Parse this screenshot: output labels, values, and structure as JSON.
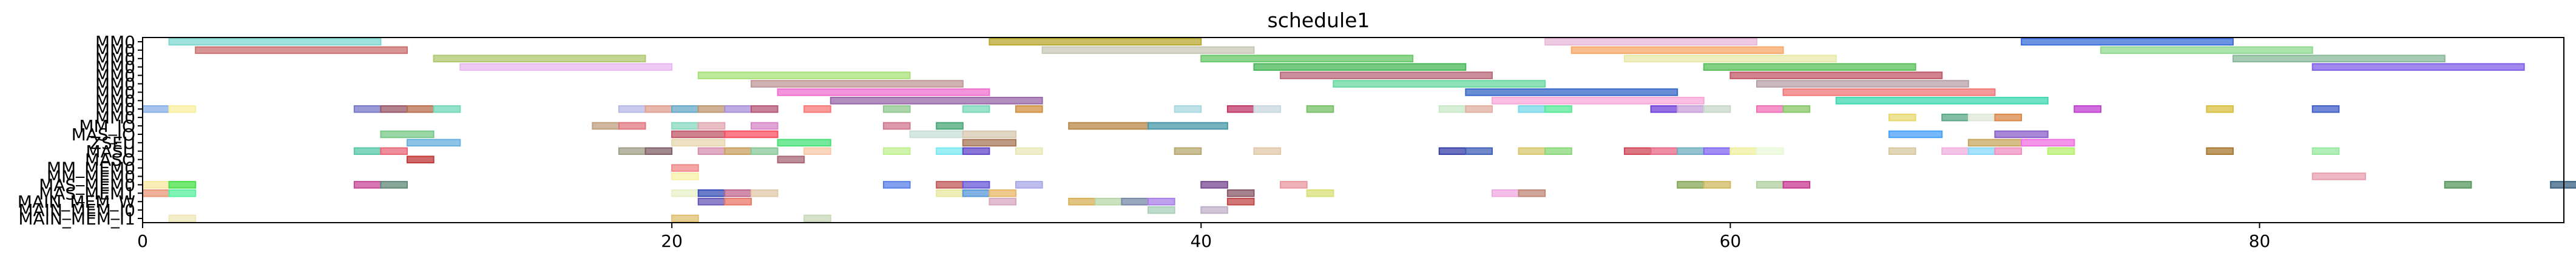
{
  "chart_data": {
    "type": "gantt",
    "title": "schedule1",
    "xlabel": "",
    "ylabel": "",
    "xlim": [
      0,
      91.5
    ],
    "xticks": [
      0,
      20,
      40,
      60,
      80
    ],
    "grid": false,
    "rows": [
      "MM0",
      "MM0",
      "MM0",
      "MM0",
      "MM0",
      "MM0",
      "MM0",
      "MM0",
      "MM0",
      "MM0",
      "MM_IO",
      "MAS_IO",
      "ZSEU",
      "MASU",
      "MASO",
      "MM_MEM0",
      "MM_MEM0",
      "MAS_MEM0",
      "MAS_MEM1",
      "MAIN_MEM_W",
      "MAIN_MEM_I0",
      "MAIN_MEM_I1"
    ],
    "bars": [
      {
        "row": 0,
        "start": 1.0,
        "end": 9.0,
        "color": "#7fd8d0"
      },
      {
        "row": 0,
        "start": 32.0,
        "end": 40.0,
        "color": "#b8a830"
      },
      {
        "row": 0,
        "start": 53.0,
        "end": 61.0,
        "color": "#e8b8d8"
      },
      {
        "row": 0,
        "start": 71.0,
        "end": 79.0,
        "color": "#3a6fd8"
      },
      {
        "row": 1,
        "start": 2.0,
        "end": 10.0,
        "color": "#cc7070"
      },
      {
        "row": 1,
        "start": 34.0,
        "end": 42.0,
        "color": "#c8c8b8"
      },
      {
        "row": 1,
        "start": 54.0,
        "end": 62.0,
        "color": "#f8a868"
      },
      {
        "row": 1,
        "start": 74.0,
        "end": 82.0,
        "color": "#90d890"
      },
      {
        "row": 2,
        "start": 11.0,
        "end": 19.0,
        "color": "#b0c870"
      },
      {
        "row": 2,
        "start": 40.0,
        "end": 48.0,
        "color": "#68c868"
      },
      {
        "row": 2,
        "start": 56.0,
        "end": 64.0,
        "color": "#e8e8a8"
      },
      {
        "row": 2,
        "start": 79.0,
        "end": 87.0,
        "color": "#88b898"
      },
      {
        "row": 3,
        "start": 12.0,
        "end": 20.0,
        "color": "#e8b8f0"
      },
      {
        "row": 3,
        "start": 42.0,
        "end": 50.0,
        "color": "#48b858"
      },
      {
        "row": 3,
        "start": 59.0,
        "end": 67.0,
        "color": "#58c058"
      },
      {
        "row": 3,
        "start": 82.0,
        "end": 90.0,
        "color": "#8060e8"
      },
      {
        "row": 4,
        "start": 21.0,
        "end": 29.0,
        "color": "#a8e078"
      },
      {
        "row": 4,
        "start": 43.0,
        "end": 51.0,
        "color": "#b86878"
      },
      {
        "row": 4,
        "start": 60.0,
        "end": 68.0,
        "color": "#c05868"
      },
      {
        "row": 5,
        "start": 23.0,
        "end": 31.0,
        "color": "#c09898"
      },
      {
        "row": 5,
        "start": 45.0,
        "end": 53.0,
        "color": "#68d8a0"
      },
      {
        "row": 5,
        "start": 61.0,
        "end": 69.0,
        "color": "#b8a0a8"
      },
      {
        "row": 6,
        "start": 24.0,
        "end": 32.0,
        "color": "#f070d0"
      },
      {
        "row": 6,
        "start": 50.0,
        "end": 58.0,
        "color": "#3868c8"
      },
      {
        "row": 6,
        "start": 62.0,
        "end": 70.0,
        "color": "#f07878"
      },
      {
        "row": 7,
        "start": 26.0,
        "end": 34.0,
        "color": "#9868a8"
      },
      {
        "row": 7,
        "start": 51.0,
        "end": 59.0,
        "color": "#f8a8d8"
      },
      {
        "row": 7,
        "start": 64.0,
        "end": 72.0,
        "color": "#40d8b0"
      },
      {
        "row": 8,
        "start": 0.0,
        "end": 1.0,
        "color": "#88b0e8"
      },
      {
        "row": 8,
        "start": 1.0,
        "end": 2.0,
        "color": "#f8f0a0"
      },
      {
        "row": 8,
        "start": 8.0,
        "end": 9.0,
        "color": "#7878c8"
      },
      {
        "row": 8,
        "start": 9.0,
        "end": 10.0,
        "color": "#985868"
      },
      {
        "row": 8,
        "start": 10.0,
        "end": 11.0,
        "color": "#b87050"
      },
      {
        "row": 8,
        "start": 11.0,
        "end": 12.0,
        "color": "#70d8b8"
      },
      {
        "row": 8,
        "start": 18.0,
        "end": 19.0,
        "color": "#b8b8e8"
      },
      {
        "row": 8,
        "start": 19.0,
        "end": 20.0,
        "color": "#e0a090"
      },
      {
        "row": 8,
        "start": 20.0,
        "end": 21.0,
        "color": "#68a8c8"
      },
      {
        "row": 8,
        "start": 21.0,
        "end": 22.0,
        "color": "#c09870"
      },
      {
        "row": 8,
        "start": 22.0,
        "end": 23.0,
        "color": "#a890d8"
      },
      {
        "row": 8,
        "start": 23.0,
        "end": 24.0,
        "color": "#b85878"
      },
      {
        "row": 8,
        "start": 25.0,
        "end": 26.0,
        "color": "#f87878"
      },
      {
        "row": 8,
        "start": 28.0,
        "end": 29.0,
        "color": "#90c890"
      },
      {
        "row": 8,
        "start": 31.0,
        "end": 32.0,
        "color": "#78d8b8"
      },
      {
        "row": 8,
        "start": 33.0,
        "end": 34.0,
        "color": "#d09040"
      },
      {
        "row": 8,
        "start": 39.0,
        "end": 40.0,
        "color": "#a8d8e0"
      },
      {
        "row": 8,
        "start": 41.0,
        "end": 42.0,
        "color": "#c03868"
      },
      {
        "row": 8,
        "start": 42.0,
        "end": 43.0,
        "color": "#c8d8e0"
      },
      {
        "row": 8,
        "start": 44.0,
        "end": 45.0,
        "color": "#78c068"
      },
      {
        "row": 8,
        "start": 49.0,
        "end": 50.0,
        "color": "#c8e8c8"
      },
      {
        "row": 8,
        "start": 50.0,
        "end": 51.0,
        "color": "#e0b0a0"
      },
      {
        "row": 8,
        "start": 52.0,
        "end": 53.0,
        "color": "#78d8e8"
      },
      {
        "row": 8,
        "start": 53.0,
        "end": 54.0,
        "color": "#58e898"
      },
      {
        "row": 8,
        "start": 57.0,
        "end": 58.0,
        "color": "#7040d8"
      },
      {
        "row": 8,
        "start": 58.0,
        "end": 59.0,
        "color": "#c8a0d8"
      },
      {
        "row": 8,
        "start": 59.0,
        "end": 60.0,
        "color": "#c8d8c8"
      },
      {
        "row": 8,
        "start": 61.0,
        "end": 62.0,
        "color": "#f070b8"
      },
      {
        "row": 8,
        "start": 62.0,
        "end": 63.0,
        "color": "#88c868"
      },
      {
        "row": 8,
        "start": 73.0,
        "end": 74.0,
        "color": "#c040d0"
      },
      {
        "row": 8,
        "start": 78.0,
        "end": 79.0,
        "color": "#d8c040"
      },
      {
        "row": 8,
        "start": 82.0,
        "end": 83.0,
        "color": "#4060c8"
      },
      {
        "row": 9,
        "start": 66.0,
        "end": 67.0,
        "color": "#e8d870"
      },
      {
        "row": 9,
        "start": 68.0,
        "end": 69.0,
        "color": "#58a888"
      },
      {
        "row": 9,
        "start": 69.0,
        "end": 70.0,
        "color": "#e0e8d8"
      },
      {
        "row": 9,
        "start": 70.0,
        "end": 71.0,
        "color": "#d88848"
      },
      {
        "row": 10,
        "start": 17.0,
        "end": 18.0,
        "color": "#c0a080"
      },
      {
        "row": 10,
        "start": 18.0,
        "end": 19.0,
        "color": "#e07880"
      },
      {
        "row": 10,
        "start": 20.0,
        "end": 21.0,
        "color": "#88d8c0"
      },
      {
        "row": 10,
        "start": 21.0,
        "end": 22.0,
        "color": "#e0a8b0"
      },
      {
        "row": 10,
        "start": 23.0,
        "end": 24.0,
        "color": "#d888c8"
      },
      {
        "row": 10,
        "start": 28.0,
        "end": 29.0,
        "color": "#d07890"
      },
      {
        "row": 10,
        "start": 30.0,
        "end": 31.0,
        "color": "#48a878"
      },
      {
        "row": 10,
        "start": 35.0,
        "end": 38.0,
        "color": "#b88848"
      },
      {
        "row": 10,
        "start": 38.0,
        "end": 41.0,
        "color": "#4898a8"
      },
      {
        "row": 11,
        "start": 9.0,
        "end": 11.0,
        "color": "#78c888"
      },
      {
        "row": 11,
        "start": 20.0,
        "end": 22.0,
        "color": "#c05868"
      },
      {
        "row": 11,
        "start": 22.0,
        "end": 24.0,
        "color": "#f85060"
      },
      {
        "row": 11,
        "start": 29.0,
        "end": 31.0,
        "color": "#c8e0d8"
      },
      {
        "row": 11,
        "start": 31.0,
        "end": 33.0,
        "color": "#d8c8b0"
      },
      {
        "row": 11,
        "start": 66.0,
        "end": 68.0,
        "color": "#48a0f8"
      },
      {
        "row": 11,
        "start": 70.0,
        "end": 72.0,
        "color": "#8860c8"
      },
      {
        "row": 12,
        "start": 10.0,
        "end": 12.0,
        "color": "#68b0e0"
      },
      {
        "row": 12,
        "start": 20.0,
        "end": 22.0,
        "color": "#e8d8b0"
      },
      {
        "row": 12,
        "start": 24.0,
        "end": 26.0,
        "color": "#48e078"
      },
      {
        "row": 12,
        "start": 31.0,
        "end": 33.0,
        "color": "#a87858"
      },
      {
        "row": 12,
        "start": 69.0,
        "end": 71.0,
        "color": "#c8a860"
      },
      {
        "row": 12,
        "start": 71.0,
        "end": 73.0,
        "color": "#f070e0"
      },
      {
        "row": 13,
        "start": 8.0,
        "end": 9.0,
        "color": "#58c8a8"
      },
      {
        "row": 13,
        "start": 9.0,
        "end": 10.0,
        "color": "#e86878"
      },
      {
        "row": 13,
        "start": 18.0,
        "end": 19.0,
        "color": "#a0a088"
      },
      {
        "row": 13,
        "start": 19.0,
        "end": 20.0,
        "color": "#806068"
      },
      {
        "row": 13,
        "start": 21.0,
        "end": 22.0,
        "color": "#d890b0"
      },
      {
        "row": 13,
        "start": 22.0,
        "end": 23.0,
        "color": "#c8a060"
      },
      {
        "row": 13,
        "start": 23.0,
        "end": 24.0,
        "color": "#88c898"
      },
      {
        "row": 13,
        "start": 25.0,
        "end": 26.0,
        "color": "#f8c8a8"
      },
      {
        "row": 13,
        "start": 28.0,
        "end": 29.0,
        "color": "#c0f090"
      },
      {
        "row": 13,
        "start": 30.0,
        "end": 31.0,
        "color": "#78e8f0"
      },
      {
        "row": 13,
        "start": 31.0,
        "end": 32.0,
        "color": "#6048c8"
      },
      {
        "row": 13,
        "start": 33.0,
        "end": 34.0,
        "color": "#e8e8b8"
      },
      {
        "row": 13,
        "start": 39.0,
        "end": 40.0,
        "color": "#b8a870"
      },
      {
        "row": 13,
        "start": 42.0,
        "end": 43.0,
        "color": "#e0c8a8"
      },
      {
        "row": 13,
        "start": 49.0,
        "end": 50.0,
        "color": "#3840a8"
      },
      {
        "row": 13,
        "start": 50.0,
        "end": 51.0,
        "color": "#4060b8"
      },
      {
        "row": 13,
        "start": 52.0,
        "end": 53.0,
        "color": "#d8c870"
      },
      {
        "row": 13,
        "start": 53.0,
        "end": 54.0,
        "color": "#88d878"
      },
      {
        "row": 13,
        "start": 56.0,
        "end": 57.0,
        "color": "#d04858"
      },
      {
        "row": 13,
        "start": 57.0,
        "end": 58.0,
        "color": "#e86888"
      },
      {
        "row": 13,
        "start": 58.0,
        "end": 59.0,
        "color": "#70b0c0"
      },
      {
        "row": 13,
        "start": 59.0,
        "end": 60.0,
        "color": "#8068f0"
      },
      {
        "row": 13,
        "start": 60.0,
        "end": 61.0,
        "color": "#f0f0a0"
      },
      {
        "row": 13,
        "start": 61.0,
        "end": 62.0,
        "color": "#e8f8d8"
      },
      {
        "row": 13,
        "start": 66.0,
        "end": 67.0,
        "color": "#d8c8a0"
      },
      {
        "row": 13,
        "start": 68.0,
        "end": 69.0,
        "color": "#f0b0e0"
      },
      {
        "row": 13,
        "start": 69.0,
        "end": 70.0,
        "color": "#88d8f8"
      },
      {
        "row": 13,
        "start": 70.0,
        "end": 71.0,
        "color": "#f090c0"
      },
      {
        "row": 13,
        "start": 72.0,
        "end": 73.0,
        "color": "#b8f070"
      },
      {
        "row": 13,
        "start": 78.0,
        "end": 79.0,
        "color": "#a87830"
      },
      {
        "row": 13,
        "start": 82.0,
        "end": 83.0,
        "color": "#98e8a0"
      },
      {
        "row": 14,
        "start": 10.0,
        "end": 11.0,
        "color": "#c03838"
      },
      {
        "row": 14,
        "start": 24.0,
        "end": 25.0,
        "color": "#a86878"
      },
      {
        "row": 15,
        "start": 20.0,
        "end": 21.0,
        "color": "#f08888"
      },
      {
        "row": 16,
        "start": 20.0,
        "end": 21.0,
        "color": "#f8f0a8"
      },
      {
        "row": 16,
        "start": 82.0,
        "end": 84.0,
        "color": "#e8a0b0"
      },
      {
        "row": 17,
        "start": 0.0,
        "end": 1.0,
        "color": "#f8e8a0"
      },
      {
        "row": 17,
        "start": 1.0,
        "end": 2.0,
        "color": "#48e048"
      },
      {
        "row": 17,
        "start": 8.0,
        "end": 9.0,
        "color": "#c84898"
      },
      {
        "row": 17,
        "start": 9.0,
        "end": 10.0,
        "color": "#608878"
      },
      {
        "row": 17,
        "start": 28.0,
        "end": 29.0,
        "color": "#5880e8"
      },
      {
        "row": 17,
        "start": 30.0,
        "end": 31.0,
        "color": "#c05858"
      },
      {
        "row": 17,
        "start": 31.0,
        "end": 32.0,
        "color": "#6858d8"
      },
      {
        "row": 17,
        "start": 33.0,
        "end": 34.0,
        "color": "#a8a8e8"
      },
      {
        "row": 17,
        "start": 40.0,
        "end": 41.0,
        "color": "#784890"
      },
      {
        "row": 17,
        "start": 43.0,
        "end": 44.0,
        "color": "#e898a0"
      },
      {
        "row": 17,
        "start": 58.0,
        "end": 59.0,
        "color": "#88a858"
      },
      {
        "row": 17,
        "start": 59.0,
        "end": 60.0,
        "color": "#d0b860"
      },
      {
        "row": 17,
        "start": 61.0,
        "end": 62.0,
        "color": "#b0d0a0"
      },
      {
        "row": 17,
        "start": 62.0,
        "end": 63.0,
        "color": "#c83890"
      },
      {
        "row": 17,
        "start": 87.0,
        "end": 88.0,
        "color": "#589860"
      },
      {
        "row": 17,
        "start": 91.0,
        "end": 92.0,
        "color": "#386080"
      },
      {
        "row": 18,
        "start": 0.0,
        "end": 1.0,
        "color": "#e89878"
      },
      {
        "row": 18,
        "start": 1.0,
        "end": 2.0,
        "color": "#58f0a0"
      },
      {
        "row": 18,
        "start": 20.0,
        "end": 21.0,
        "color": "#e8f0c8"
      },
      {
        "row": 18,
        "start": 21.0,
        "end": 22.0,
        "color": "#3850b8"
      },
      {
        "row": 18,
        "start": 22.0,
        "end": 23.0,
        "color": "#c06890"
      },
      {
        "row": 18,
        "start": 23.0,
        "end": 24.0,
        "color": "#e0c8a8"
      },
      {
        "row": 18,
        "start": 30.0,
        "end": 31.0,
        "color": "#e8e8a0"
      },
      {
        "row": 18,
        "start": 31.0,
        "end": 32.0,
        "color": "#5898d8"
      },
      {
        "row": 18,
        "start": 32.0,
        "end": 33.0,
        "color": "#e8b868"
      },
      {
        "row": 18,
        "start": 41.0,
        "end": 42.0,
        "color": "#885868"
      },
      {
        "row": 18,
        "start": 44.0,
        "end": 45.0,
        "color": "#d8e078"
      },
      {
        "row": 18,
        "start": 51.0,
        "end": 52.0,
        "color": "#f0a8e0"
      },
      {
        "row": 18,
        "start": 52.0,
        "end": 53.0,
        "color": "#c08878"
      },
      {
        "row": 19,
        "start": 21.0,
        "end": 22.0,
        "color": "#6858b8"
      },
      {
        "row": 19,
        "start": 22.0,
        "end": 23.0,
        "color": "#e87868"
      },
      {
        "row": 19,
        "start": 32.0,
        "end": 33.0,
        "color": "#d8a8c0"
      },
      {
        "row": 19,
        "start": 35.0,
        "end": 36.0,
        "color": "#d8b058"
      },
      {
        "row": 19,
        "start": 36.0,
        "end": 37.0,
        "color": "#b8d8a8"
      },
      {
        "row": 19,
        "start": 37.0,
        "end": 38.0,
        "color": "#7888a8"
      },
      {
        "row": 19,
        "start": 38.0,
        "end": 39.0,
        "color": "#a880e8"
      },
      {
        "row": 19,
        "start": 41.0,
        "end": 42.0,
        "color": "#c04848"
      },
      {
        "row": 20,
        "start": 38.0,
        "end": 39.0,
        "color": "#a8d0b8"
      },
      {
        "row": 20,
        "start": 40.0,
        "end": 41.0,
        "color": "#c0b0c8"
      },
      {
        "row": 21,
        "start": 1.0,
        "end": 2.0,
        "color": "#f0e8b8"
      },
      {
        "row": 21,
        "start": 20.0,
        "end": 21.0,
        "color": "#e0c070"
      },
      {
        "row": 21,
        "start": 25.0,
        "end": 26.0,
        "color": "#c8d8b8"
      }
    ]
  }
}
